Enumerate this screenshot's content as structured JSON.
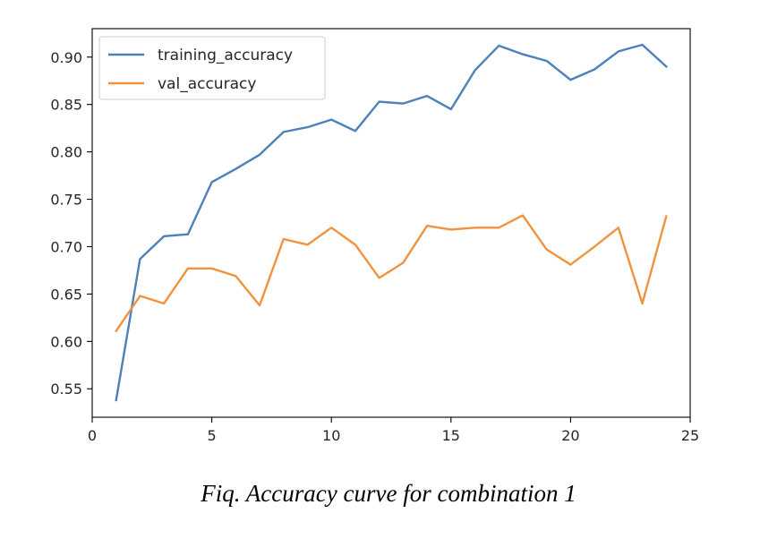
{
  "caption": "Fiq. Accuracy curve for combination 1",
  "chart_data": {
    "type": "line",
    "title": "",
    "xlabel": "",
    "ylabel": "",
    "xlim": [
      0,
      25
    ],
    "ylim": [
      0.52,
      0.93
    ],
    "grid": false,
    "legend_position": "top-left",
    "x_ticks": [
      0,
      5,
      10,
      15,
      20,
      25
    ],
    "y_ticks": [
      0.55,
      0.6,
      0.65,
      0.7,
      0.75,
      0.8,
      0.85,
      0.9
    ],
    "x": [
      1,
      2,
      3,
      4,
      5,
      6,
      7,
      8,
      9,
      10,
      11,
      12,
      13,
      14,
      15,
      16,
      17,
      18,
      19,
      20,
      21,
      22,
      23,
      24
    ],
    "series": [
      {
        "name": "training_accuracy",
        "color": "#4c81b9",
        "values": [
          0.538,
          0.687,
          0.711,
          0.713,
          0.768,
          0.782,
          0.797,
          0.821,
          0.826,
          0.834,
          0.822,
          0.853,
          0.851,
          0.859,
          0.845,
          0.886,
          0.912,
          0.903,
          0.896,
          0.876,
          0.887,
          0.906,
          0.913,
          0.89
        ]
      },
      {
        "name": "val_accuracy",
        "color": "#f0933f",
        "values": [
          0.611,
          0.648,
          0.64,
          0.677,
          0.677,
          0.669,
          0.638,
          0.708,
          0.702,
          0.72,
          0.702,
          0.667,
          0.683,
          0.722,
          0.718,
          0.72,
          0.72,
          0.733,
          0.697,
          0.681,
          0.7,
          0.72,
          0.64,
          0.732
        ]
      }
    ]
  }
}
